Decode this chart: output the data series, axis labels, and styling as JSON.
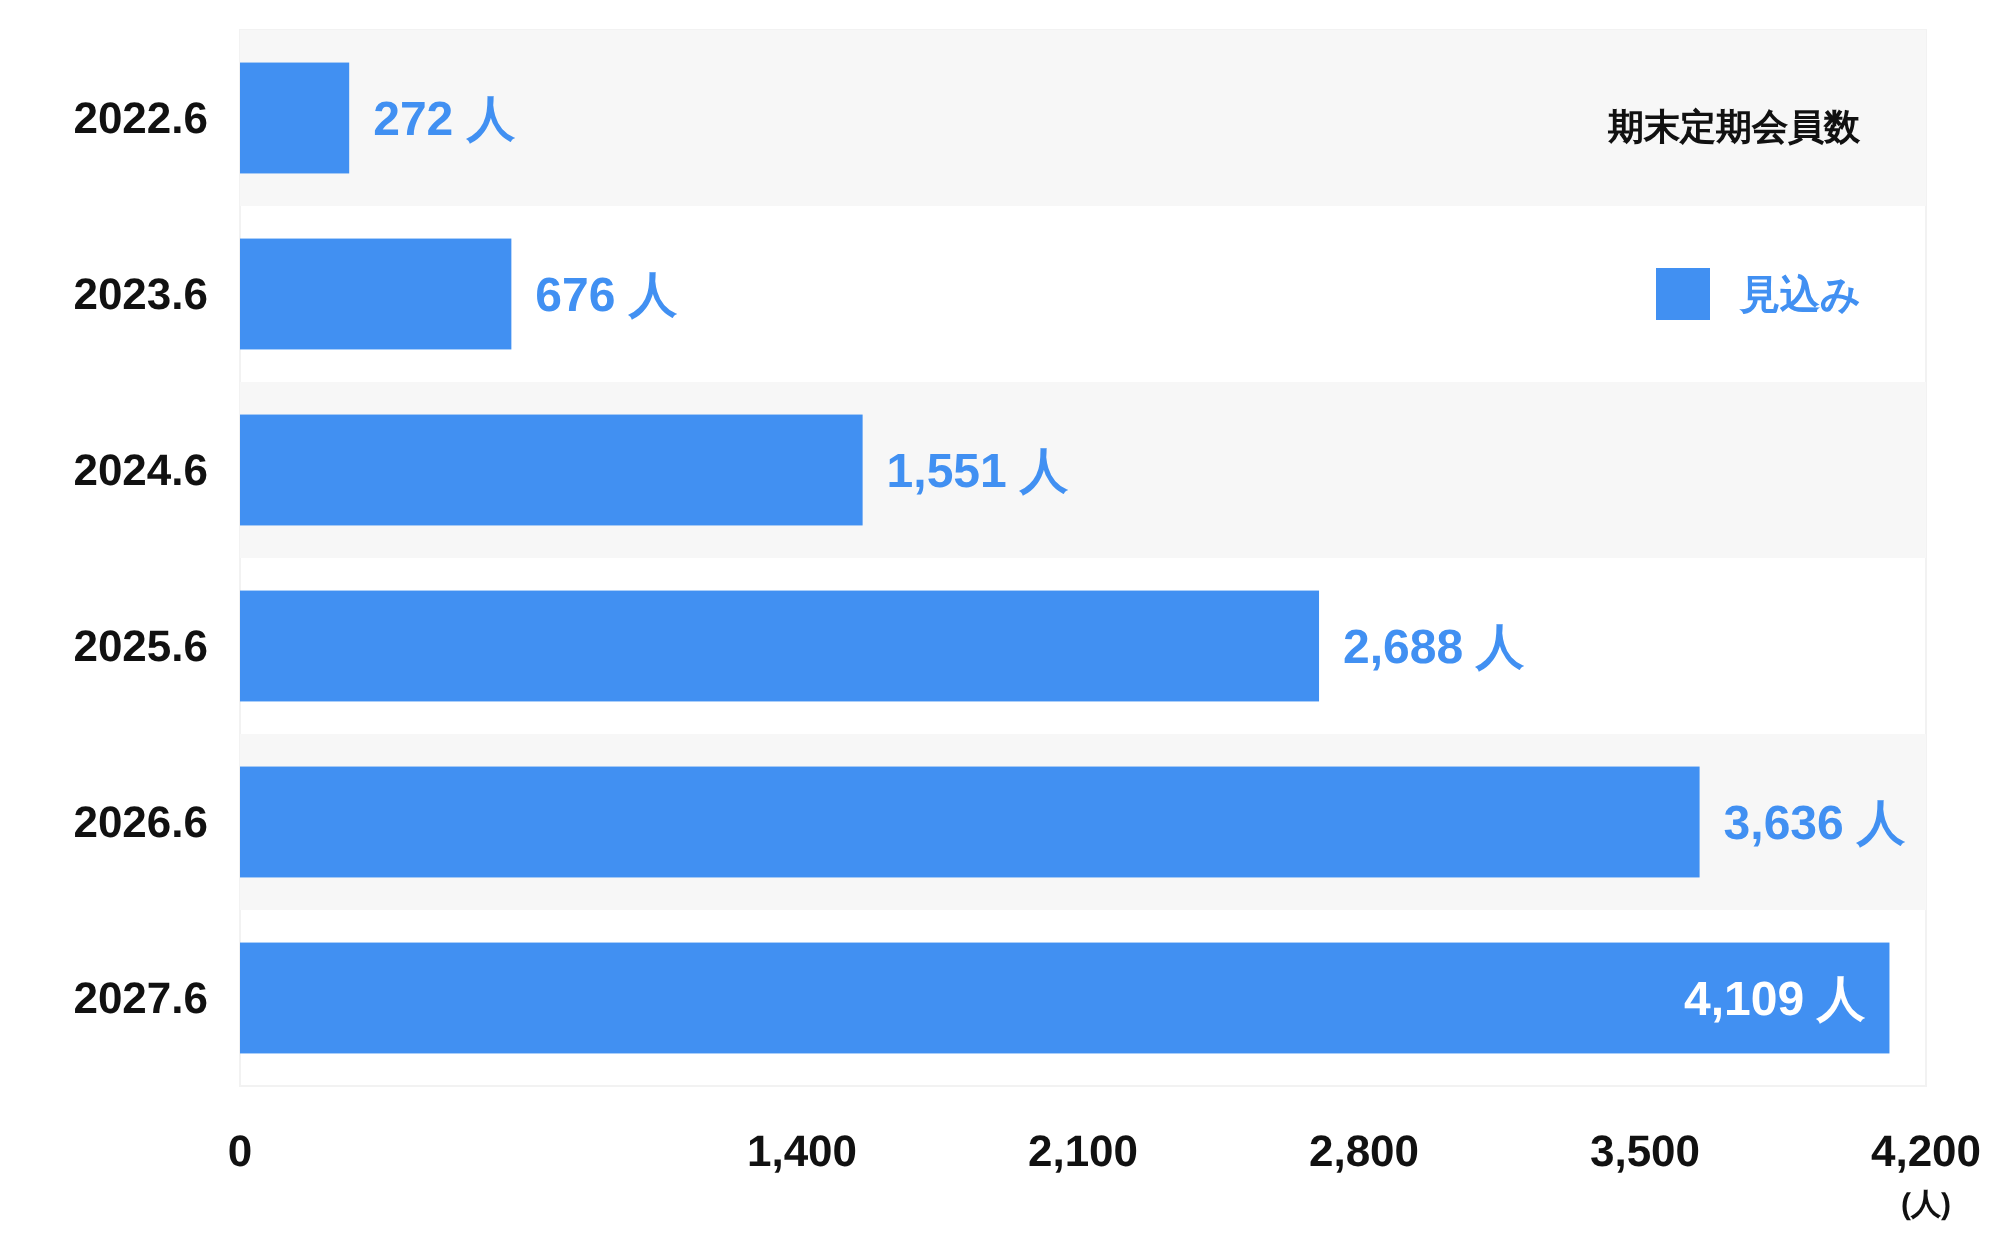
{
  "chart_data": {
    "type": "bar",
    "orientation": "horizontal",
    "categories": [
      "2022.6",
      "2023.6",
      "2024.6",
      "2025.6",
      "2026.6",
      "2027.6"
    ],
    "series": [
      {
        "name": "見込み",
        "color": "#4190f2",
        "values": [
          272,
          676,
          1551,
          2688,
          3636,
          4109
        ],
        "value_labels": [
          "272 人",
          "676 人",
          "1,551 人",
          "2,688 人",
          "3,636 人",
          "4,109 人"
        ]
      }
    ],
    "xlim": [
      0,
      4200
    ],
    "xticks": [
      0,
      {
        "value": 1400,
        "label": "1,400"
      },
      {
        "value": 2100,
        "label": "2,100"
      },
      {
        "value": 2800,
        "label": "2,800"
      },
      {
        "value": 3500,
        "label": "3,500"
      },
      {
        "value": 4200,
        "label": "4,200"
      }
    ],
    "xlabel": "(人)",
    "legend_title": "期末定期会員数",
    "legend": "top right",
    "grid": false,
    "bands": [
      {
        "axis": "y",
        "from": "2022.6",
        "to": "2022.6",
        "color": "#f7f7f7"
      },
      {
        "axis": "y",
        "from": "2024.6",
        "to": "2024.6",
        "color": "#f7f7f7"
      },
      {
        "axis": "y",
        "from": "2026.6",
        "to": "2026.6",
        "color": "#f7f7f7"
      }
    ]
  }
}
